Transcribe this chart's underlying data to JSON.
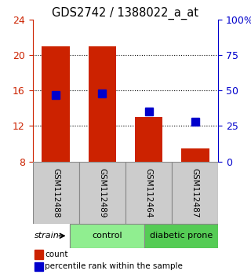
{
  "title": "GDS2742 / 1388022_a_at",
  "samples": [
    "GSM112488",
    "GSM112489",
    "GSM112464",
    "GSM112487"
  ],
  "groups": [
    {
      "label": "control",
      "indices": [
        0,
        1
      ],
      "color": "#90EE90"
    },
    {
      "label": "diabetic prone",
      "indices": [
        2,
        3
      ],
      "color": "#55CC55"
    }
  ],
  "count_values": [
    21.0,
    21.0,
    13.0,
    9.5
  ],
  "percentile_values": [
    47.0,
    48.0,
    35.0,
    28.0
  ],
  "ylim_left": [
    8,
    24
  ],
  "ylim_right": [
    0,
    100
  ],
  "yticks_left": [
    8,
    12,
    16,
    20,
    24
  ],
  "yticks_right": [
    0,
    25,
    50,
    75,
    100
  ],
  "yticklabels_right": [
    "0",
    "25",
    "50",
    "75",
    "100%"
  ],
  "bar_color": "#CC2200",
  "marker_color": "#0000CC",
  "bg_color": "#FFFFFF",
  "left_axis_color": "#CC2200",
  "right_axis_color": "#0000CC",
  "strain_label": "strain",
  "legend_count": "count",
  "legend_percentile": "percentile rank within the sample",
  "bar_width": 0.6,
  "marker_size": 7
}
